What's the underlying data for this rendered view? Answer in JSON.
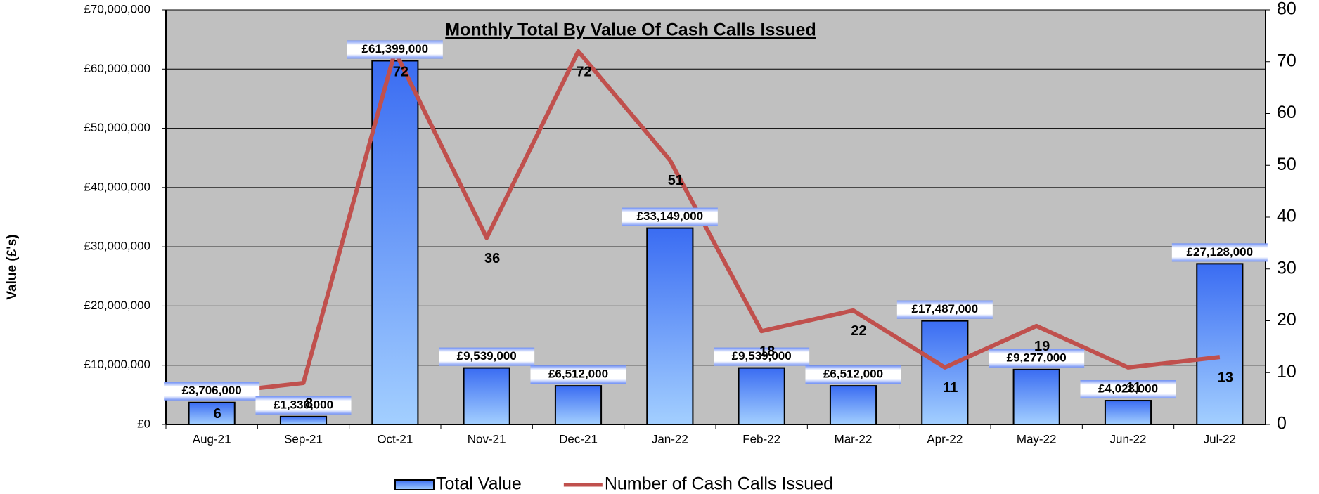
{
  "chart_data": {
    "type": "bar_line",
    "title": "Monthly Total By Value Of Cash Calls Issued",
    "y_label": "Value (£'s)",
    "categories": [
      "Aug-21",
      "Sep-21",
      "Oct-21",
      "Nov-21",
      "Dec-21",
      "Jan-22",
      "Feb-22",
      "Mar-22",
      "Apr-22",
      "May-22",
      "Jun-22",
      "Jul-22"
    ],
    "series": [
      {
        "name": "Total Value",
        "type": "bar",
        "color": "#3f74f2",
        "values": [
          3706000,
          1330000,
          61399000,
          9539000,
          6512000,
          33149000,
          9539000,
          6512000,
          17487000,
          9277000,
          4028000,
          27128000
        ],
        "value_labels": [
          "£3,706,000",
          "£1,330,000",
          "£61,399,000",
          "£9,539,000",
          "£6,512,000",
          "£33,149,000",
          "£9,539,000",
          "£6,512,000",
          "£17,487,000",
          "£9,277,000",
          "£4,028,000",
          "£27,128,000"
        ]
      },
      {
        "name": "Number of Cash Calls Issued",
        "type": "line",
        "axis": "y2",
        "color": "#c0504d",
        "values": [
          6,
          8,
          72,
          36,
          72,
          51,
          18,
          22,
          11,
          19,
          11,
          13
        ]
      }
    ],
    "ylim": [
      0,
      70000000
    ],
    "yticks": [
      {
        "value": 0,
        "label": "£0"
      },
      {
        "value": 10000000,
        "label": "£10,000,000"
      },
      {
        "value": 20000000,
        "label": "£20,000,000"
      },
      {
        "value": 30000000,
        "label": "£30,000,000"
      },
      {
        "value": 40000000,
        "label": "£40,000,000"
      },
      {
        "value": 50000000,
        "label": "£50,000,000"
      },
      {
        "value": 60000000,
        "label": "£60,000,000"
      },
      {
        "value": 70000000,
        "label": "£70,000,000"
      }
    ],
    "y2lim": [
      0,
      80
    ],
    "y2ticks": [
      0,
      10,
      20,
      30,
      40,
      50,
      60,
      70,
      80
    ],
    "grid": true,
    "legend": "bottom"
  }
}
